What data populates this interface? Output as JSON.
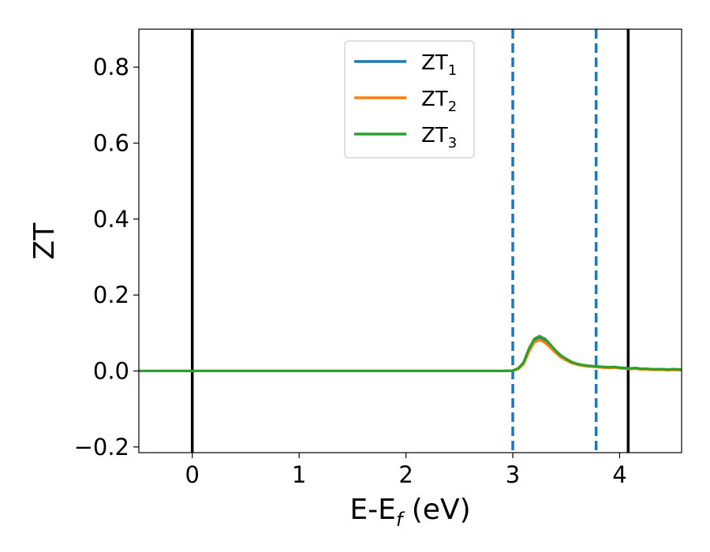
{
  "chart_data": {
    "type": "line",
    "xlabel_main": "E-E",
    "xlabel_sub": "f",
    "xlabel_unit": " (eV)",
    "ylabel": "ZT",
    "xlim": [
      -0.5,
      4.58
    ],
    "ylim": [
      -0.215,
      0.9
    ],
    "xticks": [
      {
        "value": 0,
        "label": "0"
      },
      {
        "value": 1,
        "label": "1"
      },
      {
        "value": 2,
        "label": "2"
      },
      {
        "value": 3,
        "label": "3"
      },
      {
        "value": 4,
        "label": "4"
      }
    ],
    "yticks": [
      {
        "value": -0.2,
        "label": "−0.2"
      },
      {
        "value": 0.0,
        "label": "0.0"
      },
      {
        "value": 0.2,
        "label": "0.2"
      },
      {
        "value": 0.4,
        "label": "0.4"
      },
      {
        "value": 0.6,
        "label": "0.6"
      },
      {
        "value": 0.8,
        "label": "0.8"
      }
    ],
    "legend_position": "top-center",
    "grid": false,
    "vertical_lines": [
      {
        "x": 0.0,
        "style": "solid",
        "color": "#000000"
      },
      {
        "x": 4.08,
        "style": "solid",
        "color": "#000000"
      },
      {
        "x": 3.0,
        "style": "dashed",
        "color": "#1f77b4"
      },
      {
        "x": 3.78,
        "style": "dashed",
        "color": "#1f77b4"
      }
    ],
    "series": [
      {
        "name": "ZT",
        "sub": "1",
        "color": "#1f77b4",
        "x": [
          -0.5,
          2.9,
          3.0,
          3.05,
          3.1,
          3.15,
          3.2,
          3.25,
          3.3,
          3.35,
          3.4,
          3.45,
          3.5,
          3.55,
          3.6,
          3.65,
          3.7,
          3.75,
          3.8,
          3.85,
          3.9,
          3.95,
          4.0,
          4.05,
          4.1,
          4.15,
          4.2,
          4.25,
          4.3,
          4.35,
          4.4,
          4.45,
          4.5,
          4.58
        ],
        "y": [
          0.0,
          0.0,
          0.001,
          0.006,
          0.02,
          0.055,
          0.08,
          0.088,
          0.08,
          0.065,
          0.05,
          0.038,
          0.03,
          0.022,
          0.018,
          0.015,
          0.013,
          0.012,
          0.011,
          0.01,
          0.009,
          0.01,
          0.008,
          0.007,
          0.006,
          0.007,
          0.005,
          0.005,
          0.004,
          0.004,
          0.004,
          0.003,
          0.004,
          0.003
        ]
      },
      {
        "name": "ZT",
        "sub": "2",
        "color": "#ff7f0e",
        "x": [
          -0.5,
          2.9,
          3.0,
          3.05,
          3.1,
          3.15,
          3.2,
          3.25,
          3.3,
          3.35,
          3.4,
          3.45,
          3.5,
          3.55,
          3.6,
          3.65,
          3.7,
          3.75,
          3.8,
          3.85,
          3.9,
          3.95,
          4.0,
          4.05,
          4.1,
          4.15,
          4.2,
          4.25,
          4.3,
          4.35,
          4.4,
          4.45,
          4.5,
          4.58
        ],
        "y": [
          0.0,
          0.0,
          0.001,
          0.005,
          0.018,
          0.05,
          0.075,
          0.082,
          0.075,
          0.062,
          0.048,
          0.036,
          0.028,
          0.021,
          0.017,
          0.014,
          0.012,
          0.011,
          0.01,
          0.009,
          0.008,
          0.009,
          0.007,
          0.006,
          0.005,
          0.006,
          0.004,
          0.004,
          0.003,
          0.003,
          0.003,
          0.002,
          0.003,
          0.002
        ]
      },
      {
        "name": "ZT",
        "sub": "3",
        "color": "#2ca02c",
        "x": [
          -0.5,
          2.9,
          3.0,
          3.05,
          3.1,
          3.15,
          3.2,
          3.25,
          3.3,
          3.35,
          3.4,
          3.45,
          3.5,
          3.55,
          3.6,
          3.65,
          3.7,
          3.75,
          3.8,
          3.85,
          3.9,
          3.95,
          4.0,
          4.05,
          4.1,
          4.15,
          4.2,
          4.25,
          4.3,
          4.35,
          4.4,
          4.45,
          4.5,
          4.58
        ],
        "y": [
          0.0,
          0.0,
          0.001,
          0.007,
          0.022,
          0.058,
          0.084,
          0.092,
          0.085,
          0.07,
          0.054,
          0.041,
          0.032,
          0.024,
          0.019,
          0.016,
          0.014,
          0.013,
          0.012,
          0.011,
          0.01,
          0.011,
          0.009,
          0.008,
          0.007,
          0.008,
          0.006,
          0.006,
          0.005,
          0.005,
          0.005,
          0.004,
          0.005,
          0.004
        ]
      }
    ]
  }
}
